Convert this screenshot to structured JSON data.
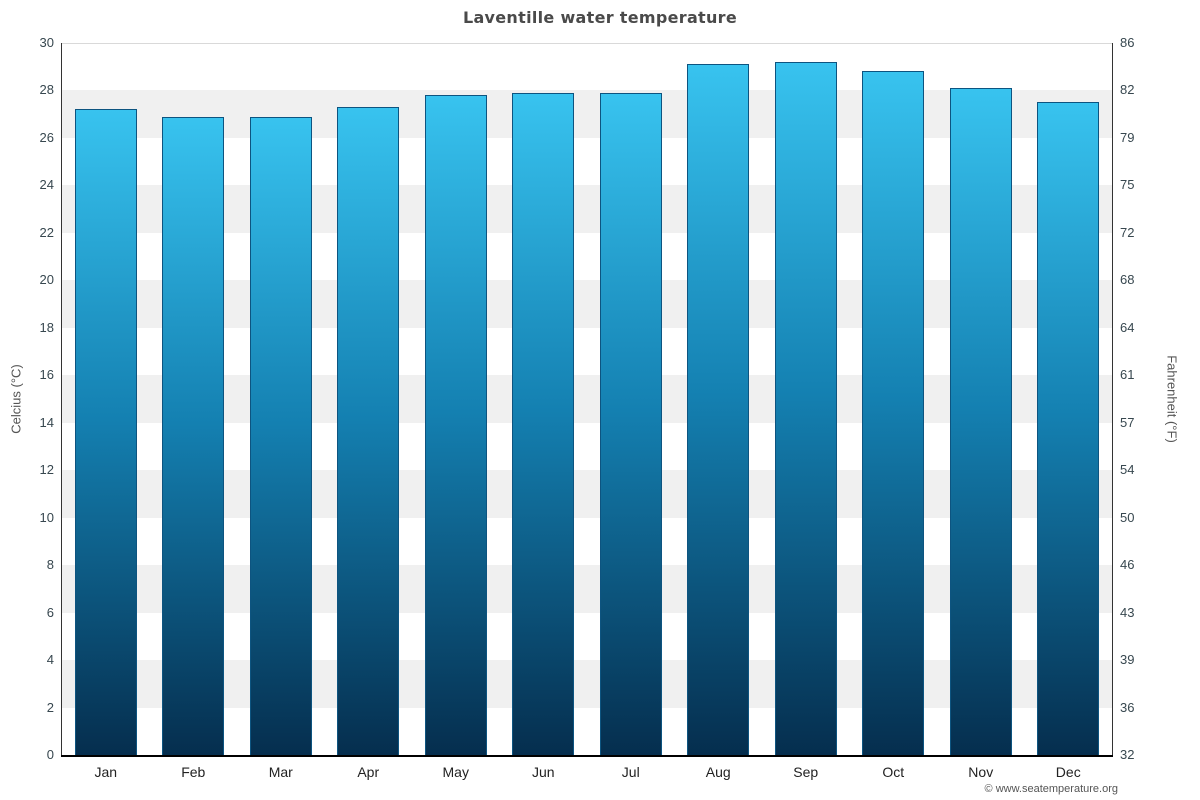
{
  "page": {
    "copyright": "© www.seatemperature.org"
  },
  "chart_data": {
    "type": "bar",
    "title": "Laventille water temperature",
    "ylabel": "Celcius (°C)",
    "y2label": "Fahrenheit (°F)",
    "categories": [
      "Jan",
      "Feb",
      "Mar",
      "Apr",
      "May",
      "Jun",
      "Jul",
      "Aug",
      "Sep",
      "Oct",
      "Nov",
      "Dec"
    ],
    "values": [
      27.2,
      26.9,
      26.9,
      27.3,
      27.8,
      27.9,
      27.9,
      29.1,
      29.2,
      28.8,
      28.1,
      27.5
    ],
    "ylim": [
      0,
      30
    ],
    "yticks": [
      0,
      2,
      4,
      6,
      8,
      10,
      12,
      14,
      16,
      18,
      20,
      22,
      24,
      26,
      28,
      30
    ],
    "y2ticks": [
      32,
      36,
      39,
      43,
      46,
      50,
      54,
      57,
      61,
      64,
      68,
      72,
      75,
      79,
      82,
      86
    ],
    "legend": "none",
    "grid": "banded",
    "band_colors": [
      "#ffffff",
      "#f0f0f0"
    ],
    "bar_gradient_top": "#38c3ef",
    "bar_gradient_mid": "#1480b1",
    "bar_gradient_bottom": "#052e4e",
    "bar_border_color": "#0d5480"
  }
}
